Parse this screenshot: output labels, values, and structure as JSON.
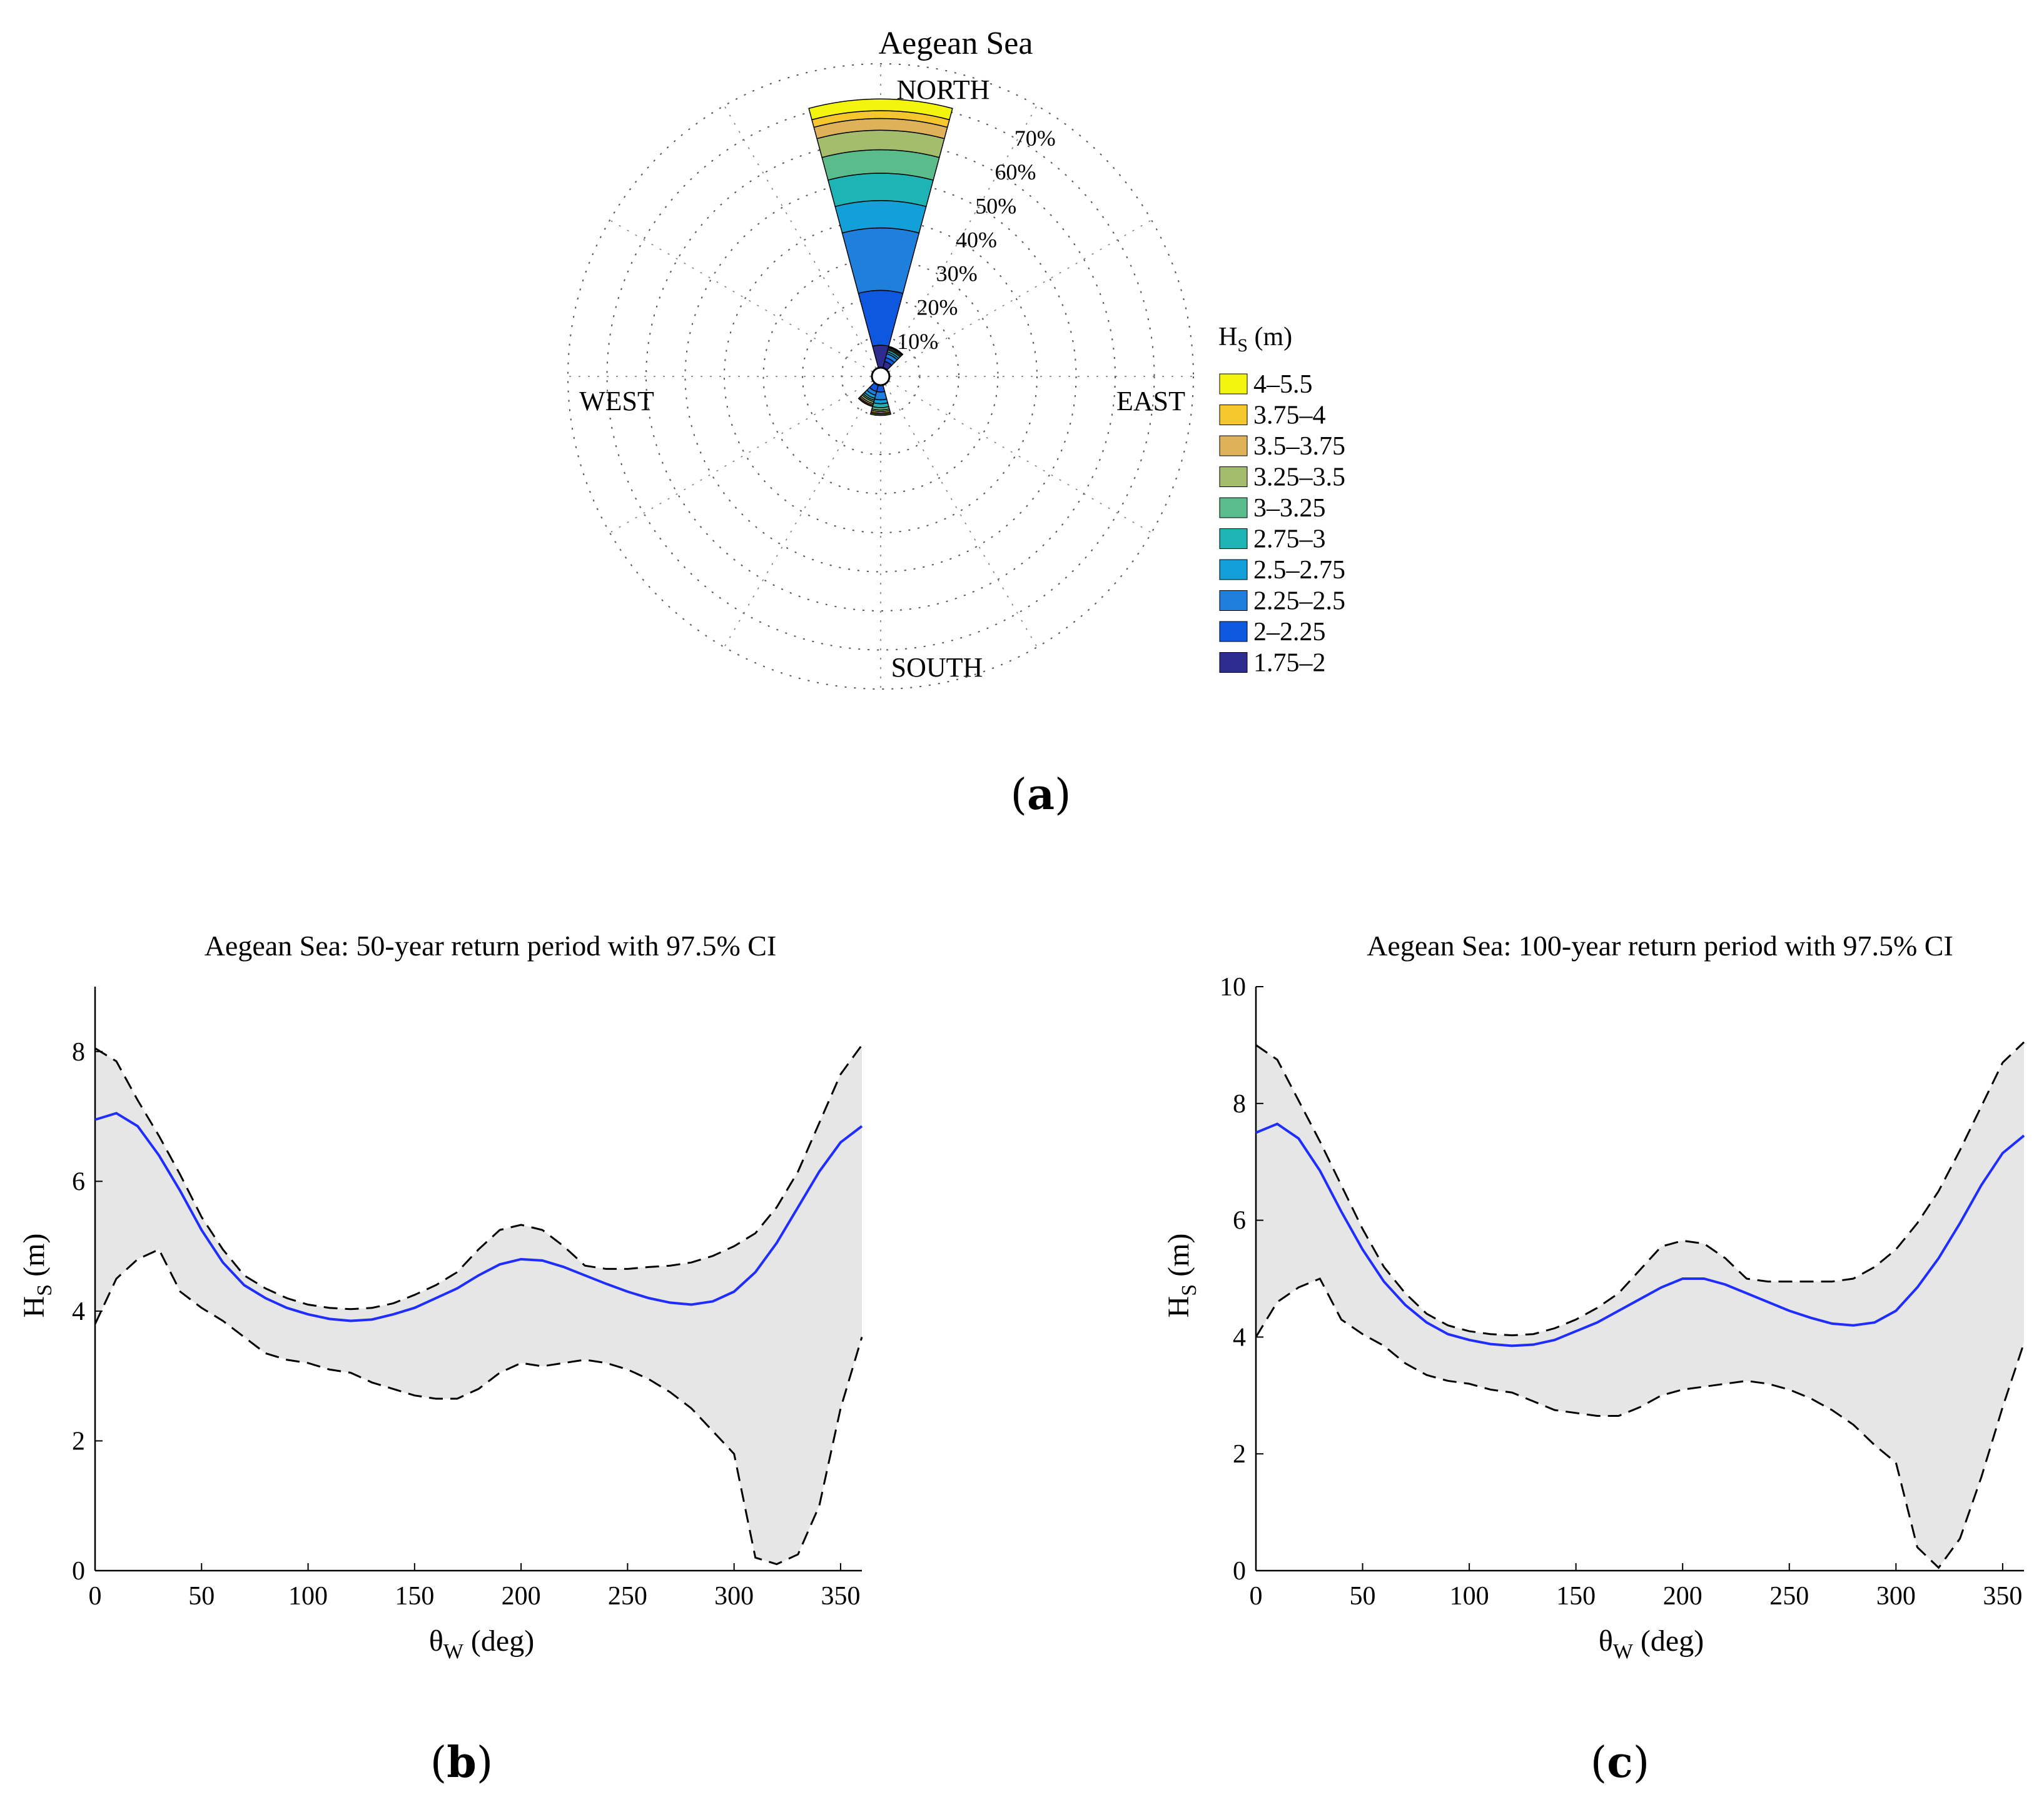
{
  "panel_labels": {
    "a": "a",
    "b": "b",
    "c": "c"
  },
  "colors": {
    "curve": "#1f2dff",
    "band": "#e6e6e6",
    "bound": "#000000"
  },
  "chart_data": [
    {
      "id": "a",
      "type": "polar-bar",
      "title": "Aegean Sea",
      "compass": {
        "north": "NORTH",
        "east": "EAST",
        "south": "SOUTH",
        "west": "WEST"
      },
      "radial_ticks": [
        {
          "value": 10,
          "label": "10%"
        },
        {
          "value": 20,
          "label": "20%"
        },
        {
          "value": 30,
          "label": "30%"
        },
        {
          "value": 40,
          "label": "40%"
        },
        {
          "value": 50,
          "label": "50%"
        },
        {
          "value": 60,
          "label": "60%"
        },
        {
          "value": 70,
          "label": "70%"
        }
      ],
      "rmax": 80,
      "legend": {
        "title_main": "H",
        "title_sub": "S",
        "title_unit": " (m)",
        "bins": [
          {
            "label": "4–5.5",
            "color": "#f4f50e"
          },
          {
            "label": "3.75–4",
            "color": "#f5c72d"
          },
          {
            "label": "3.5–3.75",
            "color": "#dfb25a"
          },
          {
            "label": "3.25–3.5",
            "color": "#a4bd6c"
          },
          {
            "label": "3–3.25",
            "color": "#5bbc8b"
          },
          {
            "label": "2.75–3",
            "color": "#1eb3b5"
          },
          {
            "label": "2.5–2.75",
            "color": "#139fd8"
          },
          {
            "label": "2.25–2.5",
            "color": "#1e7fdc"
          },
          {
            "label": "2–2.25",
            "color": "#0e58e0"
          },
          {
            "label": "1.75–2",
            "color": "#2e2d8f"
          }
        ]
      },
      "sectors": [
        {
          "direction_deg": 0,
          "cumulative_percent": [
            8,
            22,
            38,
            45,
            52,
            58,
            63,
            66,
            68,
            71
          ]
        },
        {
          "direction_deg": 30,
          "cumulative_percent": [
            4,
            5,
            6,
            6.5,
            7,
            7.3,
            7.6,
            7.8,
            7.9,
            8
          ]
        },
        {
          "direction_deg": 180,
          "cumulative_percent": [
            2,
            4,
            6,
            7,
            8,
            8.6,
            9,
            9.4,
            9.7,
            10
          ]
        },
        {
          "direction_deg": 210,
          "cumulative_percent": [
            2,
            4,
            5,
            5.8,
            6.3,
            6.7,
            7.2,
            7.6,
            7.9,
            8
          ]
        }
      ]
    },
    {
      "id": "b",
      "type": "line",
      "title": "Aegean Sea: 50-year return period with 97.5% CI",
      "xlabel_main": "θ",
      "xlabel_sub": "W",
      "xlabel_unit": " (deg)",
      "ylabel_main": "H",
      "ylabel_sub": "S",
      "ylabel_unit": " (m)",
      "xlim": [
        0,
        360
      ],
      "ylim": [
        0,
        9
      ],
      "xticks": [
        0,
        50,
        100,
        150,
        200,
        250,
        300,
        350
      ],
      "yticks": [
        0,
        2,
        4,
        6,
        8
      ],
      "x": [
        0,
        10,
        20,
        30,
        40,
        50,
        60,
        70,
        80,
        90,
        100,
        110,
        120,
        130,
        140,
        150,
        160,
        170,
        180,
        190,
        200,
        210,
        220,
        230,
        240,
        250,
        260,
        270,
        280,
        290,
        300,
        310,
        320,
        330,
        340,
        350,
        360
      ],
      "series": [
        {
          "name": "Hs",
          "style": "solid",
          "values": [
            6.95,
            7.05,
            6.85,
            6.4,
            5.85,
            5.25,
            4.75,
            4.4,
            4.2,
            4.05,
            3.95,
            3.88,
            3.85,
            3.87,
            3.95,
            4.05,
            4.2,
            4.35,
            4.55,
            4.72,
            4.8,
            4.78,
            4.68,
            4.55,
            4.42,
            4.3,
            4.2,
            4.13,
            4.1,
            4.15,
            4.3,
            4.6,
            5.05,
            5.6,
            6.15,
            6.6,
            6.85
          ]
        },
        {
          "name": "upper 97.5% CI",
          "style": "dashed",
          "values": [
            8.05,
            7.85,
            7.25,
            6.7,
            6.1,
            5.45,
            4.95,
            4.55,
            4.35,
            4.2,
            4.1,
            4.05,
            4.03,
            4.05,
            4.12,
            4.25,
            4.4,
            4.6,
            4.95,
            5.25,
            5.33,
            5.25,
            5.0,
            4.7,
            4.65,
            4.65,
            4.68,
            4.7,
            4.75,
            4.85,
            5.0,
            5.2,
            5.6,
            6.15,
            6.9,
            7.65,
            8.1
          ]
        },
        {
          "name": "lower 97.5% CI",
          "style": "dashed",
          "values": [
            3.8,
            4.5,
            4.8,
            4.95,
            4.3,
            4.05,
            3.85,
            3.6,
            3.35,
            3.25,
            3.2,
            3.1,
            3.05,
            2.9,
            2.8,
            2.7,
            2.65,
            2.65,
            2.8,
            3.05,
            3.2,
            3.15,
            3.2,
            3.25,
            3.2,
            3.1,
            2.95,
            2.75,
            2.5,
            2.15,
            1.8,
            0.2,
            0.1,
            0.25,
            1.0,
            2.5,
            3.6
          ]
        }
      ]
    },
    {
      "id": "c",
      "type": "line",
      "title": "Aegean Sea: 100-year return period with 97.5% CI",
      "xlabel_main": "θ",
      "xlabel_sub": "W",
      "xlabel_unit": " (deg)",
      "ylabel_main": "H",
      "ylabel_sub": "S",
      "ylabel_unit": " (m)",
      "xlim": [
        0,
        360
      ],
      "ylim": [
        0,
        10
      ],
      "xticks": [
        0,
        50,
        100,
        150,
        200,
        250,
        300,
        350
      ],
      "yticks": [
        0,
        2,
        4,
        6,
        8,
        10
      ],
      "x": [
        0,
        10,
        20,
        30,
        40,
        50,
        60,
        70,
        80,
        90,
        100,
        110,
        120,
        130,
        140,
        150,
        160,
        170,
        180,
        190,
        200,
        210,
        220,
        230,
        240,
        250,
        260,
        270,
        280,
        290,
        300,
        310,
        320,
        330,
        340,
        350,
        360
      ],
      "series": [
        {
          "name": "Hs",
          "style": "solid",
          "values": [
            7.5,
            7.65,
            7.4,
            6.85,
            6.15,
            5.5,
            4.95,
            4.55,
            4.25,
            4.05,
            3.95,
            3.88,
            3.85,
            3.87,
            3.95,
            4.1,
            4.25,
            4.45,
            4.65,
            4.85,
            5.0,
            5.0,
            4.9,
            4.75,
            4.6,
            4.45,
            4.33,
            4.23,
            4.2,
            4.25,
            4.45,
            4.85,
            5.35,
            5.95,
            6.6,
            7.15,
            7.45
          ]
        },
        {
          "name": "upper 97.5% CI",
          "style": "dashed",
          "values": [
            9.0,
            8.75,
            8.05,
            7.35,
            6.6,
            5.85,
            5.2,
            4.75,
            4.4,
            4.2,
            4.1,
            4.05,
            4.03,
            4.05,
            4.15,
            4.3,
            4.5,
            4.75,
            5.15,
            5.55,
            5.65,
            5.6,
            5.35,
            5.0,
            4.95,
            4.95,
            4.95,
            4.95,
            5.0,
            5.2,
            5.5,
            5.95,
            6.5,
            7.2,
            7.95,
            8.7,
            9.05
          ]
        },
        {
          "name": "lower 97.5% CI",
          "style": "dashed",
          "values": [
            4.0,
            4.6,
            4.85,
            5.0,
            4.3,
            4.05,
            3.85,
            3.55,
            3.35,
            3.25,
            3.2,
            3.1,
            3.05,
            2.9,
            2.75,
            2.7,
            2.65,
            2.65,
            2.8,
            3.0,
            3.1,
            3.15,
            3.2,
            3.25,
            3.2,
            3.1,
            2.95,
            2.75,
            2.5,
            2.15,
            1.85,
            0.4,
            0.05,
            0.55,
            1.6,
            2.8,
            3.9
          ]
        }
      ]
    }
  ]
}
